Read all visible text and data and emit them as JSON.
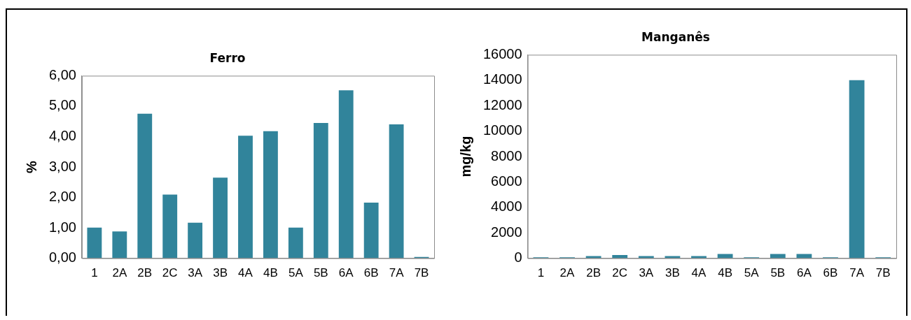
{
  "chart_data": [
    {
      "type": "bar",
      "title": "Ferro",
      "ylabel": "%",
      "categories": [
        "1",
        "2A",
        "2B",
        "2C",
        "3A",
        "3B",
        "4A",
        "4B",
        "5A",
        "5B",
        "6A",
        "6B",
        "7A",
        "7B"
      ],
      "values": [
        1.01,
        0.88,
        4.75,
        2.09,
        1.17,
        2.65,
        4.03,
        4.18,
        1.01,
        4.45,
        5.52,
        1.83,
        4.4,
        0.04
      ],
      "color": "#31849b",
      "ylim": [
        0,
        6
      ],
      "yticks": [
        {
          "value": 0,
          "label": "0,00"
        },
        {
          "value": 1,
          "label": "1,00"
        },
        {
          "value": 2,
          "label": "2,00"
        },
        {
          "value": 3,
          "label": "3,00"
        },
        {
          "value": 4,
          "label": "4,00"
        },
        {
          "value": 5,
          "label": "5,00"
        },
        {
          "value": 6,
          "label": "6,00"
        }
      ],
      "grid": false,
      "legend": false
    },
    {
      "type": "bar",
      "title": "Manganês",
      "ylabel": "mg/kg",
      "categories": [
        "1",
        "2A",
        "2B",
        "2C",
        "3A",
        "3B",
        "4A",
        "4B",
        "5A",
        "5B",
        "6A",
        "6B",
        "7A",
        "7B"
      ],
      "values": [
        80,
        80,
        170,
        250,
        170,
        170,
        170,
        340,
        80,
        340,
        340,
        80,
        14000,
        80
      ],
      "color": "#31849b",
      "ylim": [
        0,
        16000
      ],
      "yticks": [
        0,
        2000,
        4000,
        6000,
        8000,
        10000,
        12000,
        14000,
        16000
      ],
      "grid": false,
      "legend": false
    }
  ]
}
